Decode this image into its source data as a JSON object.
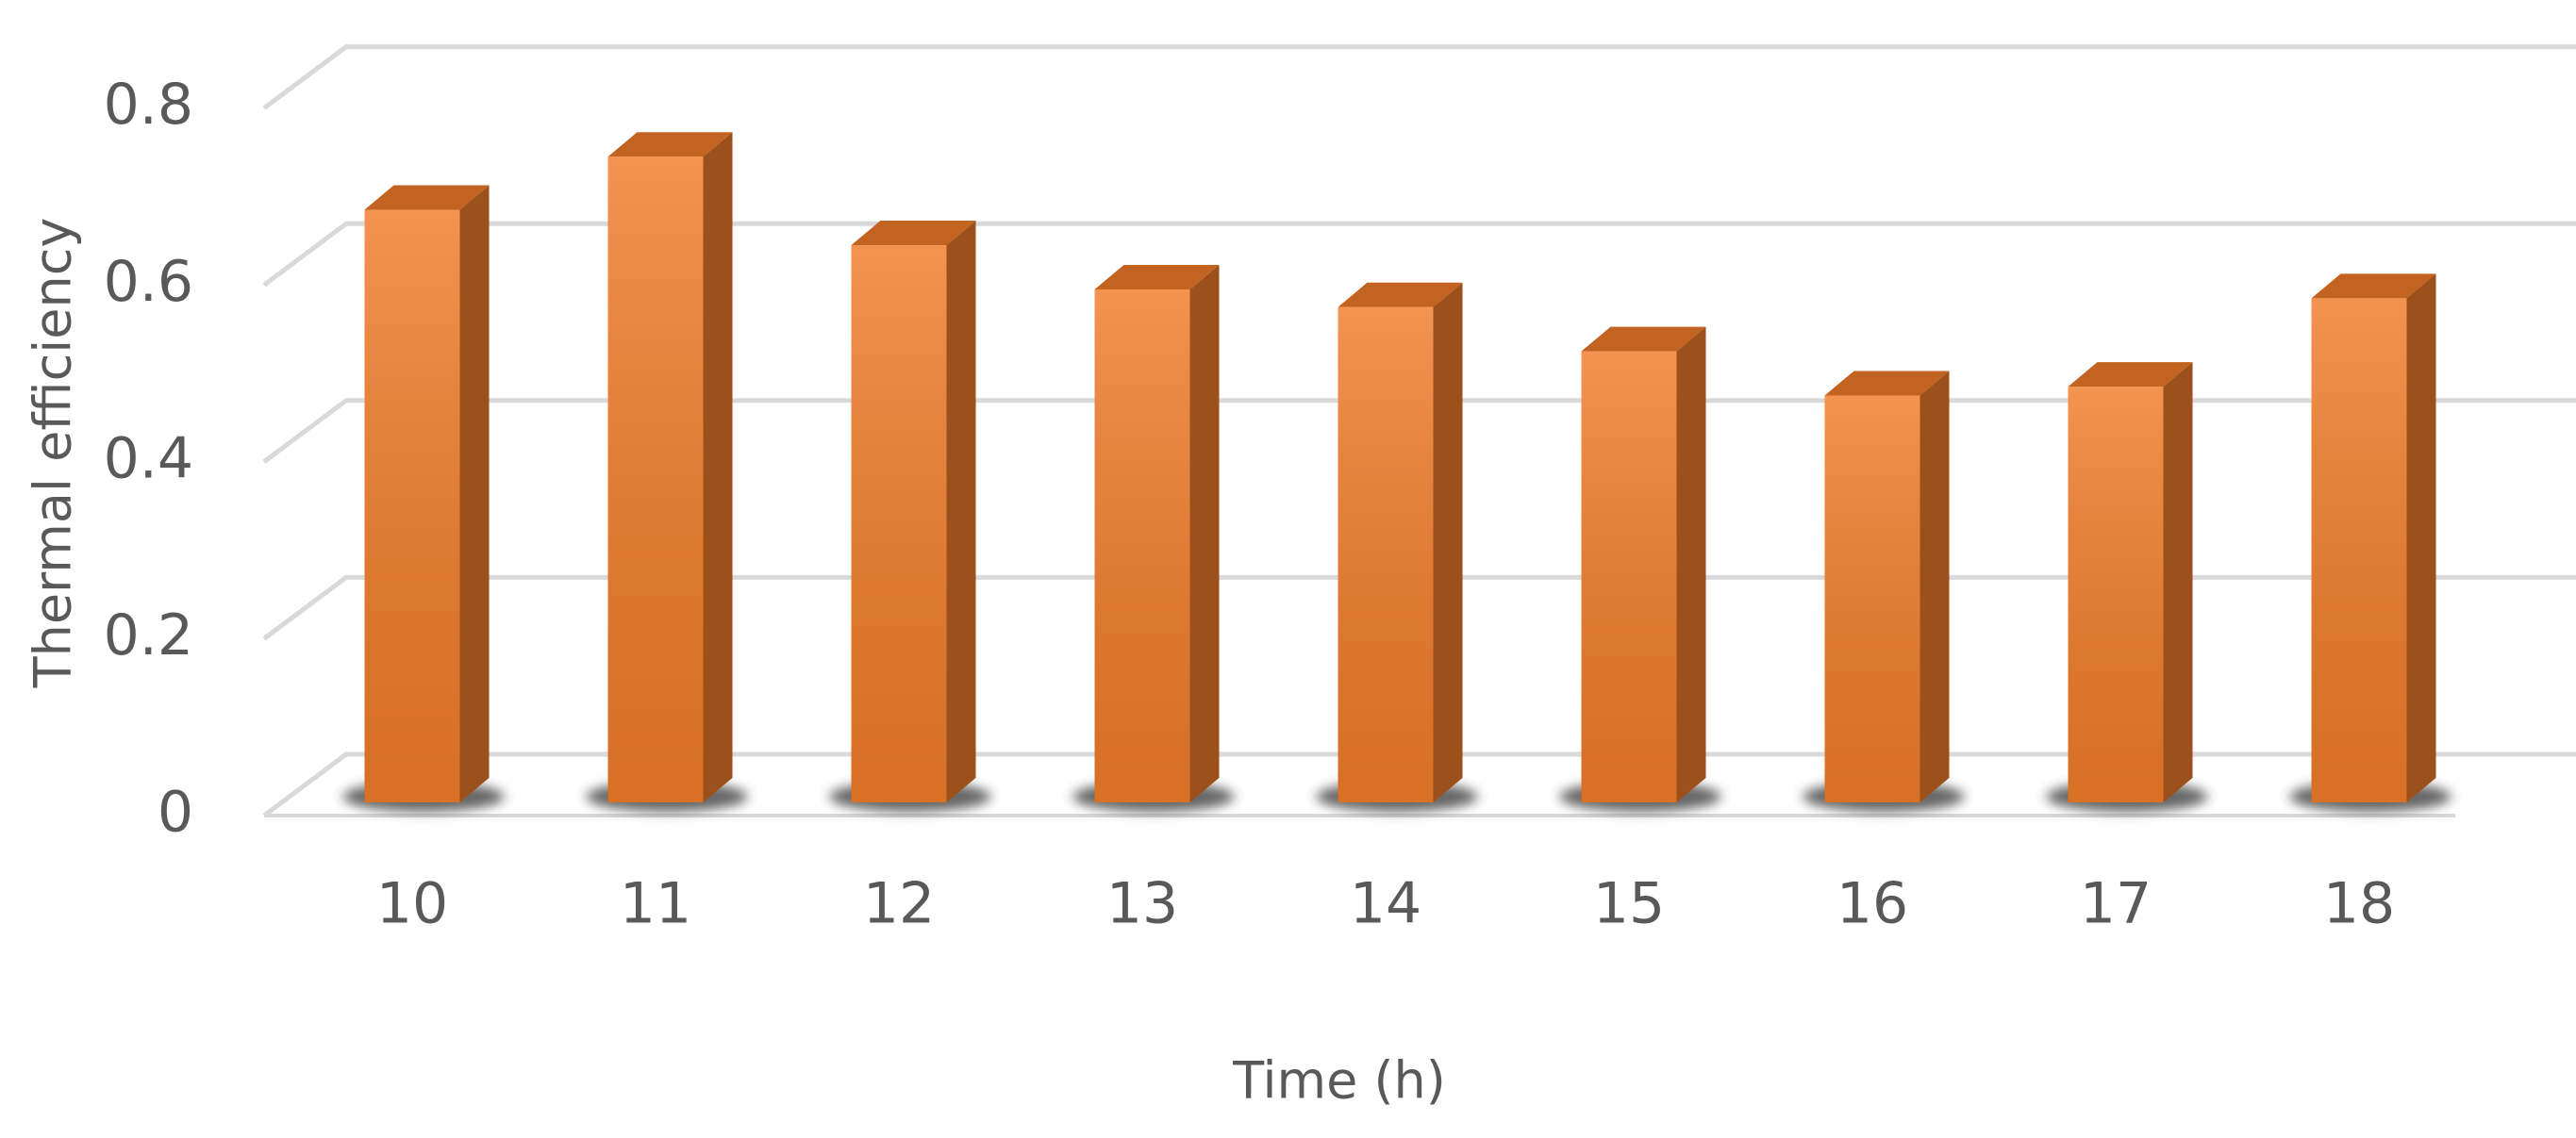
{
  "chart_data": {
    "type": "bar3d",
    "x_label": "Time (h)",
    "y_label": "Thermal efficiency",
    "categories": [
      "10",
      "11",
      "12",
      "13",
      "14",
      "15",
      "16",
      "17",
      "18"
    ],
    "values": [
      0.67,
      0.73,
      0.63,
      0.58,
      0.56,
      0.51,
      0.46,
      0.47,
      0.57
    ],
    "color": "#f07c2a",
    "ylim": [
      0,
      0.8
    ],
    "yticks": [
      0,
      0.2,
      0.4,
      0.6,
      0.8
    ],
    "grid": true
  }
}
